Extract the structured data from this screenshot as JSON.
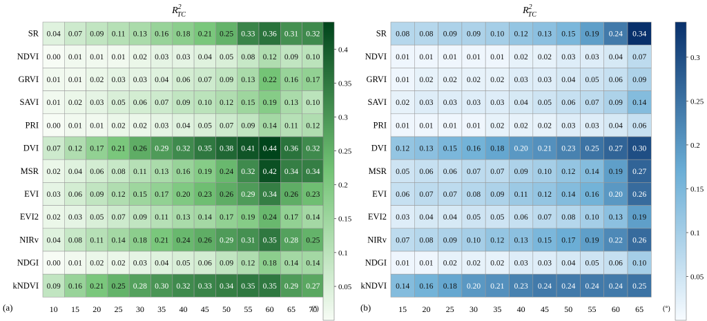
{
  "panels": [
    {
      "panel_label": "(a)",
      "title_main": "R",
      "title_sup": "2",
      "title_sub": "TC",
      "x_unit": "(°)",
      "colorbar_ticks": [
        "0.05",
        "0.1",
        "0.15",
        "0.2",
        "0.25",
        "0.3",
        "0.35",
        "0.4"
      ],
      "colors": {
        "low": "#f7fcf5",
        "mid": "#74c476",
        "high": "#00441b"
      }
    },
    {
      "panel_label": "(b)",
      "title_main": "R",
      "title_sup": "2",
      "title_sub": "TC",
      "x_unit": "(°)",
      "colorbar_ticks": [
        "0.05",
        "0.1",
        "0.15",
        "0.2",
        "0.25",
        "0.3"
      ],
      "colors": {
        "low": "#f7fbff",
        "mid": "#6baed6",
        "high": "#08306b"
      }
    }
  ],
  "chart_data": [
    {
      "type": "heatmap",
      "x": [
        "10",
        "15",
        "20",
        "25",
        "30",
        "35",
        "40",
        "45",
        "50",
        "55",
        "60",
        "65",
        "70"
      ],
      "y": [
        "SR",
        "NDVI",
        "GRVI",
        "SAVI",
        "PRI",
        "DVI",
        "MSR",
        "EVI",
        "EVI2",
        "NIRv",
        "NDGI",
        "kNDVI"
      ],
      "values": [
        [
          "0.04",
          "0.07",
          "0.09",
          "0.11",
          "0.13",
          "0.16",
          "0.18",
          "0.21",
          "0.25",
          "0.33",
          "0.36",
          "0.31",
          "0.32"
        ],
        [
          "0.00",
          "0.01",
          "0.01",
          "0.01",
          "0.02",
          "0.03",
          "0.03",
          "0.04",
          "0.05",
          "0.08",
          "0.12",
          "0.09",
          "0.10"
        ],
        [
          "0.01",
          "0.01",
          "0.02",
          "0.03",
          "0.03",
          "0.04",
          "0.06",
          "0.07",
          "0.09",
          "0.13",
          "0.22",
          "0.16",
          "0.17"
        ],
        [
          "0.01",
          "0.02",
          "0.03",
          "0.05",
          "0.06",
          "0.07",
          "0.09",
          "0.10",
          "0.12",
          "0.15",
          "0.19",
          "0.13",
          "0.10"
        ],
        [
          "0.00",
          "0.01",
          "0.01",
          "0.02",
          "0.02",
          "0.03",
          "0.04",
          "0.05",
          "0.07",
          "0.09",
          "0.14",
          "0.11",
          "0.12"
        ],
        [
          "0.07",
          "0.12",
          "0.17",
          "0.21",
          "0.26",
          "0.29",
          "0.32",
          "0.35",
          "0.38",
          "0.41",
          "0.44",
          "0.36",
          "0.32"
        ],
        [
          "0.02",
          "0.04",
          "0.06",
          "0.08",
          "0.11",
          "0.13",
          "0.16",
          "0.19",
          "0.24",
          "0.32",
          "0.42",
          "0.34",
          "0.34"
        ],
        [
          "0.03",
          "0.06",
          "0.09",
          "0.12",
          "0.15",
          "0.17",
          "0.20",
          "0.23",
          "0.26",
          "0.29",
          "0.34",
          "0.26",
          "0.23"
        ],
        [
          "0.02",
          "0.03",
          "0.05",
          "0.07",
          "0.09",
          "0.11",
          "0.13",
          "0.14",
          "0.17",
          "0.19",
          "0.24",
          "0.17",
          "0.14"
        ],
        [
          "0.04",
          "0.08",
          "0.11",
          "0.14",
          "0.18",
          "0.21",
          "0.24",
          "0.26",
          "0.29",
          "0.31",
          "0.35",
          "0.28",
          "0.25"
        ],
        [
          "0.00",
          "0.01",
          "0.02",
          "0.02",
          "0.03",
          "0.04",
          "0.05",
          "0.06",
          "0.09",
          "0.12",
          "0.18",
          "0.14",
          "0.14"
        ],
        [
          "0.09",
          "0.16",
          "0.21",
          "0.25",
          "0.28",
          "0.30",
          "0.32",
          "0.33",
          "0.34",
          "0.35",
          "0.35",
          "0.29",
          "0.27"
        ]
      ],
      "color_range": [
        0.0,
        0.44
      ],
      "colorscale": "greens"
    },
    {
      "type": "heatmap",
      "x": [
        "15",
        "20",
        "25",
        "30",
        "35",
        "40",
        "45",
        "50",
        "55",
        "60",
        "65"
      ],
      "y": [
        "SR",
        "NDVI",
        "GRVI",
        "SAVI",
        "PRI",
        "DVI",
        "MSR",
        "EVI",
        "EVI2",
        "NIRv",
        "NDGI",
        "kNDVI"
      ],
      "values": [
        [
          "0.08",
          "0.08",
          "0.09",
          "0.09",
          "0.10",
          "0.12",
          "0.13",
          "0.15",
          "0.19",
          "0.24",
          "0.34"
        ],
        [
          "0.01",
          "0.01",
          "0.01",
          "0.01",
          "0.01",
          "0.02",
          "0.02",
          "0.03",
          "0.03",
          "0.04",
          "0.07"
        ],
        [
          "0.01",
          "0.02",
          "0.02",
          "0.02",
          "0.02",
          "0.03",
          "0.03",
          "0.04",
          "0.05",
          "0.06",
          "0.09"
        ],
        [
          "0.02",
          "0.03",
          "0.03",
          "0.03",
          "0.03",
          "0.04",
          "0.05",
          "0.06",
          "0.07",
          "0.09",
          "0.14"
        ],
        [
          "0.01",
          "0.01",
          "0.01",
          "0.01",
          "0.02",
          "0.02",
          "0.02",
          "0.03",
          "0.03",
          "0.04",
          "0.06"
        ],
        [
          "0.12",
          "0.13",
          "0.15",
          "0.16",
          "0.18",
          "0.20",
          "0.21",
          "0.23",
          "0.25",
          "0.27",
          "0.30"
        ],
        [
          "0.05",
          "0.06",
          "0.06",
          "0.07",
          "0.07",
          "0.09",
          "0.10",
          "0.12",
          "0.14",
          "0.19",
          "0.27"
        ],
        [
          "0.06",
          "0.07",
          "0.07",
          "0.08",
          "0.09",
          "0.11",
          "0.12",
          "0.14",
          "0.16",
          "0.20",
          "0.26"
        ],
        [
          "0.03",
          "0.04",
          "0.04",
          "0.05",
          "0.05",
          "0.06",
          "0.07",
          "0.08",
          "0.10",
          "0.13",
          "0.19"
        ],
        [
          "0.07",
          "0.08",
          "0.09",
          "0.10",
          "0.12",
          "0.13",
          "0.15",
          "0.17",
          "0.19",
          "0.22",
          "0.26"
        ],
        [
          "0.01",
          "0.01",
          "0.02",
          "0.02",
          "0.02",
          "0.03",
          "0.03",
          "0.04",
          "0.05",
          "0.06",
          "0.10"
        ],
        [
          "0.14",
          "0.16",
          "0.18",
          "0.20",
          "0.21",
          "0.23",
          "0.24",
          "0.24",
          "0.24",
          "0.24",
          "0.25"
        ]
      ],
      "color_range": [
        0.0,
        0.34
      ],
      "colorscale": "blues"
    }
  ]
}
